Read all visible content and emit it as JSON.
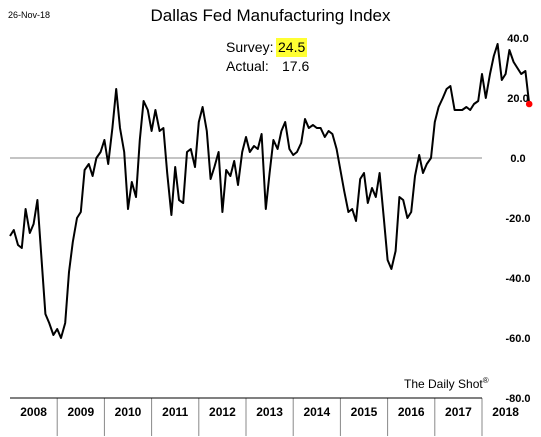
{
  "header": {
    "date": "26-Nov-18",
    "title": "Dallas Fed Manufacturing Index"
  },
  "annotation": {
    "survey_label": "Survey:",
    "survey_value": "24.5",
    "actual_label": "Actual:",
    "actual_value": "17.6",
    "highlight_color": "#ffff33"
  },
  "source": "The Daily Shot",
  "chart_data": {
    "type": "line",
    "title": "Dallas Fed Manufacturing Index",
    "xlabel": "",
    "ylabel": "",
    "ylim": [
      -80,
      40
    ],
    "yticks": [
      "40.0",
      "20.0",
      "0.0",
      "-20.0",
      "-40.0",
      "-60.0",
      "-80.0"
    ],
    "y_axis_side": "right",
    "reference_line": 0,
    "years": [
      "2008",
      "2009",
      "2010",
      "2011",
      "2012",
      "2013",
      "2014",
      "2015",
      "2016",
      "2017",
      "2018"
    ],
    "grid": false,
    "legend": "none",
    "line_color": "#000000",
    "last_point_color": "#ff0000",
    "series": [
      {
        "values": [
          [
            2008.0,
            -26
          ],
          [
            2008.08,
            -24
          ],
          [
            2008.17,
            -29
          ],
          [
            2008.25,
            -30
          ],
          [
            2008.33,
            -17
          ],
          [
            2008.42,
            -25
          ],
          [
            2008.5,
            -22
          ],
          [
            2008.58,
            -14
          ],
          [
            2008.67,
            -34
          ],
          [
            2008.75,
            -52
          ],
          [
            2008.83,
            -55
          ],
          [
            2008.92,
            -59
          ],
          [
            2009.0,
            -57
          ],
          [
            2009.08,
            -60
          ],
          [
            2009.17,
            -55
          ],
          [
            2009.25,
            -38
          ],
          [
            2009.33,
            -28
          ],
          [
            2009.42,
            -20
          ],
          [
            2009.5,
            -18
          ],
          [
            2009.58,
            -4
          ],
          [
            2009.67,
            -2
          ],
          [
            2009.75,
            -6
          ],
          [
            2009.83,
            0
          ],
          [
            2009.92,
            2
          ],
          [
            2010.0,
            6
          ],
          [
            2010.08,
            -2
          ],
          [
            2010.17,
            10
          ],
          [
            2010.25,
            23
          ],
          [
            2010.33,
            10
          ],
          [
            2010.42,
            2
          ],
          [
            2010.5,
            -17
          ],
          [
            2010.58,
            -8
          ],
          [
            2010.67,
            -13
          ],
          [
            2010.75,
            6
          ],
          [
            2010.83,
            19
          ],
          [
            2010.92,
            16
          ],
          [
            2011.0,
            9
          ],
          [
            2011.08,
            16
          ],
          [
            2011.17,
            9
          ],
          [
            2011.25,
            10
          ],
          [
            2011.33,
            -5
          ],
          [
            2011.42,
            -19
          ],
          [
            2011.5,
            -3
          ],
          [
            2011.58,
            -14
          ],
          [
            2011.67,
            -15
          ],
          [
            2011.75,
            2
          ],
          [
            2011.83,
            3
          ],
          [
            2011.92,
            -3
          ],
          [
            2012.0,
            12
          ],
          [
            2012.08,
            17
          ],
          [
            2012.17,
            9
          ],
          [
            2012.25,
            -7
          ],
          [
            2012.33,
            -3
          ],
          [
            2012.42,
            2
          ],
          [
            2012.5,
            -18
          ],
          [
            2012.58,
            -4
          ],
          [
            2012.67,
            -6
          ],
          [
            2012.75,
            -1
          ],
          [
            2012.83,
            -9
          ],
          [
            2012.92,
            2
          ],
          [
            2013.0,
            7
          ],
          [
            2013.08,
            2
          ],
          [
            2013.17,
            4
          ],
          [
            2013.25,
            3
          ],
          [
            2013.33,
            8
          ],
          [
            2013.42,
            -17
          ],
          [
            2013.5,
            -5
          ],
          [
            2013.58,
            6
          ],
          [
            2013.67,
            3
          ],
          [
            2013.75,
            9
          ],
          [
            2013.83,
            12
          ],
          [
            2013.92,
            3
          ],
          [
            2014.0,
            1
          ],
          [
            2014.08,
            2
          ],
          [
            2014.17,
            5
          ],
          [
            2014.25,
            13
          ],
          [
            2014.33,
            10
          ],
          [
            2014.42,
            11
          ],
          [
            2014.5,
            10
          ],
          [
            2014.58,
            10
          ],
          [
            2014.67,
            7
          ],
          [
            2014.75,
            9
          ],
          [
            2014.83,
            8
          ],
          [
            2014.92,
            3
          ],
          [
            2015.0,
            -4
          ],
          [
            2015.08,
            -11
          ],
          [
            2015.17,
            -18
          ],
          [
            2015.25,
            -17
          ],
          [
            2015.33,
            -21
          ],
          [
            2015.42,
            -7
          ],
          [
            2015.5,
            -5
          ],
          [
            2015.58,
            -15
          ],
          [
            2015.67,
            -10
          ],
          [
            2015.75,
            -13
          ],
          [
            2015.83,
            -5
          ],
          [
            2015.92,
            -20
          ],
          [
            2016.0,
            -34
          ],
          [
            2016.08,
            -37
          ],
          [
            2016.17,
            -31
          ],
          [
            2016.25,
            -13
          ],
          [
            2016.33,
            -14
          ],
          [
            2016.42,
            -20
          ],
          [
            2016.5,
            -18
          ],
          [
            2016.58,
            -6
          ],
          [
            2016.67,
            1
          ],
          [
            2016.75,
            -5
          ],
          [
            2016.83,
            -2
          ],
          [
            2016.92,
            0
          ],
          [
            2017.0,
            12
          ],
          [
            2017.08,
            17
          ],
          [
            2017.17,
            20
          ],
          [
            2017.25,
            23
          ],
          [
            2017.33,
            24
          ],
          [
            2017.42,
            16
          ],
          [
            2017.5,
            16
          ],
          [
            2017.58,
            16
          ],
          [
            2017.67,
            17
          ],
          [
            2017.75,
            16
          ],
          [
            2017.83,
            18
          ],
          [
            2017.92,
            19
          ],
          [
            2018.0,
            28
          ],
          [
            2018.08,
            20
          ],
          [
            2018.17,
            28
          ],
          [
            2018.25,
            34
          ],
          [
            2018.33,
            38
          ],
          [
            2018.42,
            26
          ],
          [
            2018.5,
            28
          ],
          [
            2018.58,
            36
          ],
          [
            2018.67,
            32
          ],
          [
            2018.75,
            30
          ],
          [
            2018.83,
            28
          ],
          [
            2018.92,
            29
          ],
          [
            2019.0,
            18
          ]
        ]
      }
    ]
  }
}
